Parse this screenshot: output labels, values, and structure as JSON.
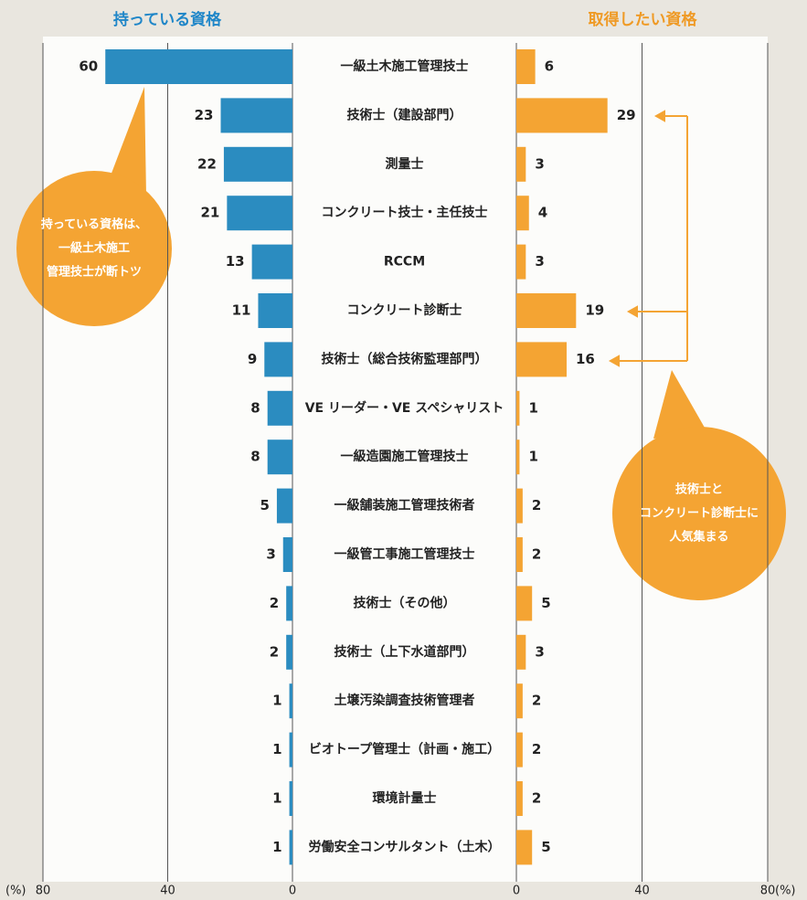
{
  "chart_data": {
    "type": "butterfly",
    "categories": [
      "一級土木施工管理技士",
      "技術士（建設部門）",
      "測量士",
      "コンクリート技士・主任技士",
      "RCCM",
      "コンクリート診断士",
      "技術士（総合技術監理部門）",
      "VE リーダー・VE スペシャリスト",
      "一級造園施工管理技士",
      "一級舗装施工管理技術者",
      "一級管工事施工管理技士",
      "技術士（その他）",
      "技術士（上下水道部門）",
      "土壌汚染調査技術管理者",
      "ビオトープ管理士（計画・施工）",
      "環境計量士",
      "労働安全コンサルタント（土木）"
    ],
    "series": [
      {
        "name": "持っている資格",
        "color": "#2b8cc0",
        "values": [
          60,
          23,
          22,
          21,
          13,
          11,
          9,
          8,
          8,
          5,
          3,
          2,
          2,
          1,
          1,
          1,
          1
        ]
      },
      {
        "name": "取得したい資格",
        "color": "#f4a433",
        "values": [
          6,
          29,
          3,
          4,
          3,
          19,
          16,
          1,
          1,
          2,
          2,
          5,
          3,
          2,
          2,
          2,
          5
        ]
      }
    ],
    "xlim": [
      0,
      80
    ],
    "xticks": [
      0,
      40,
      80
    ],
    "x_unit": "(%)",
    "annotations": [
      {
        "lines": [
          "持っている資格は、",
          "一級土木施工",
          "管理技士が断トツ"
        ]
      },
      {
        "lines": [
          "技術士と",
          "コンクリート診断士に",
          "人気集まる"
        ]
      }
    ]
  }
}
